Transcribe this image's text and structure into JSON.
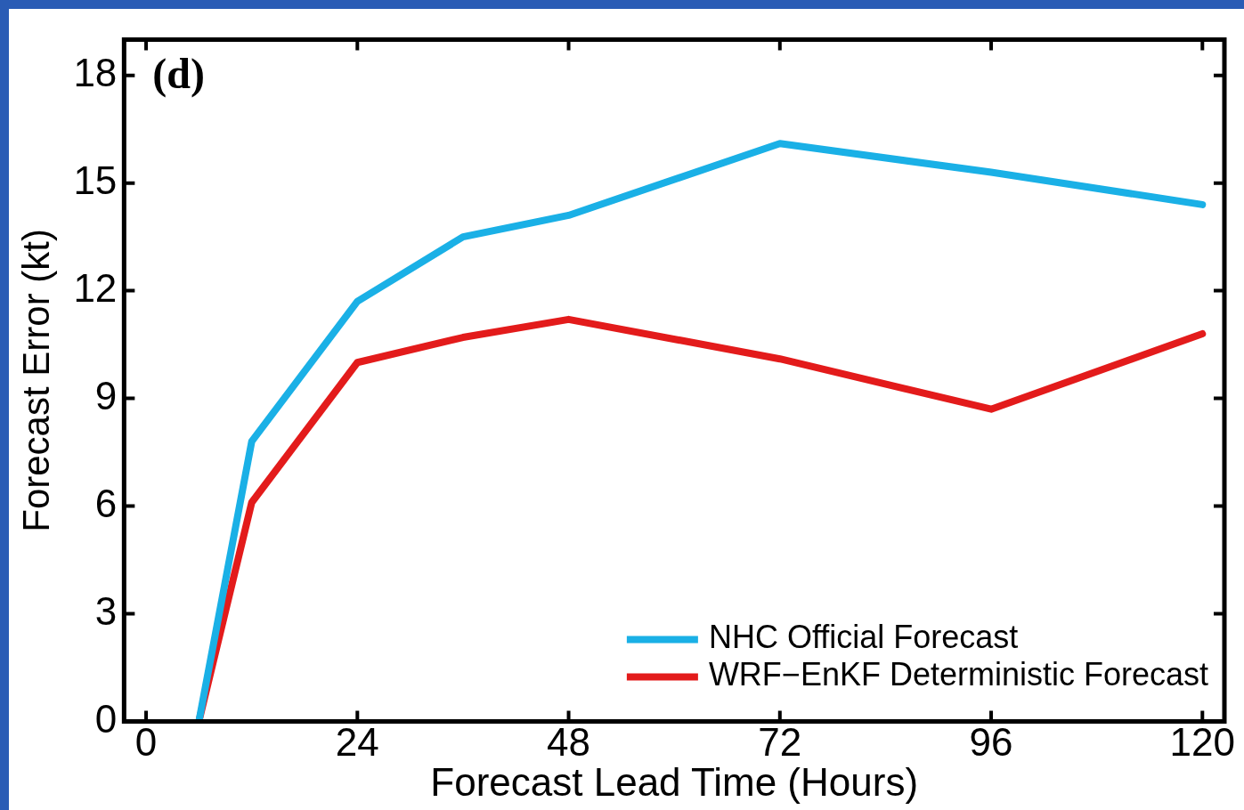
{
  "chart_data": {
    "type": "line",
    "xlabel": "Forecast Lead Time (Hours)",
    "ylabel": "Forecast Error (kt)",
    "annotations": [
      "(d)"
    ],
    "x": [
      6,
      12,
      24,
      36,
      48,
      72,
      96,
      120
    ],
    "series": [
      {
        "name": "NHC Official Forecast",
        "color": "#1ab0e6",
        "values": [
          0,
          7.8,
          11.7,
          13.5,
          14.1,
          16.1,
          15.3,
          14.4
        ]
      },
      {
        "name": "WRF−EnKF Deterministic Forecast",
        "color": "#e31b1b",
        "values": [
          0,
          6.1,
          10.0,
          10.7,
          11.2,
          10.1,
          8.7,
          10.8
        ]
      }
    ],
    "xlim": [
      -2.5,
      122.5
    ],
    "xticks": [
      0,
      24,
      48,
      72,
      96,
      120
    ],
    "ylim": [
      0,
      19
    ],
    "yticks": [
      0,
      3,
      6,
      9,
      12,
      15,
      18
    ],
    "legend": "bottom right",
    "marker": "none",
    "line_style": "solid"
  }
}
